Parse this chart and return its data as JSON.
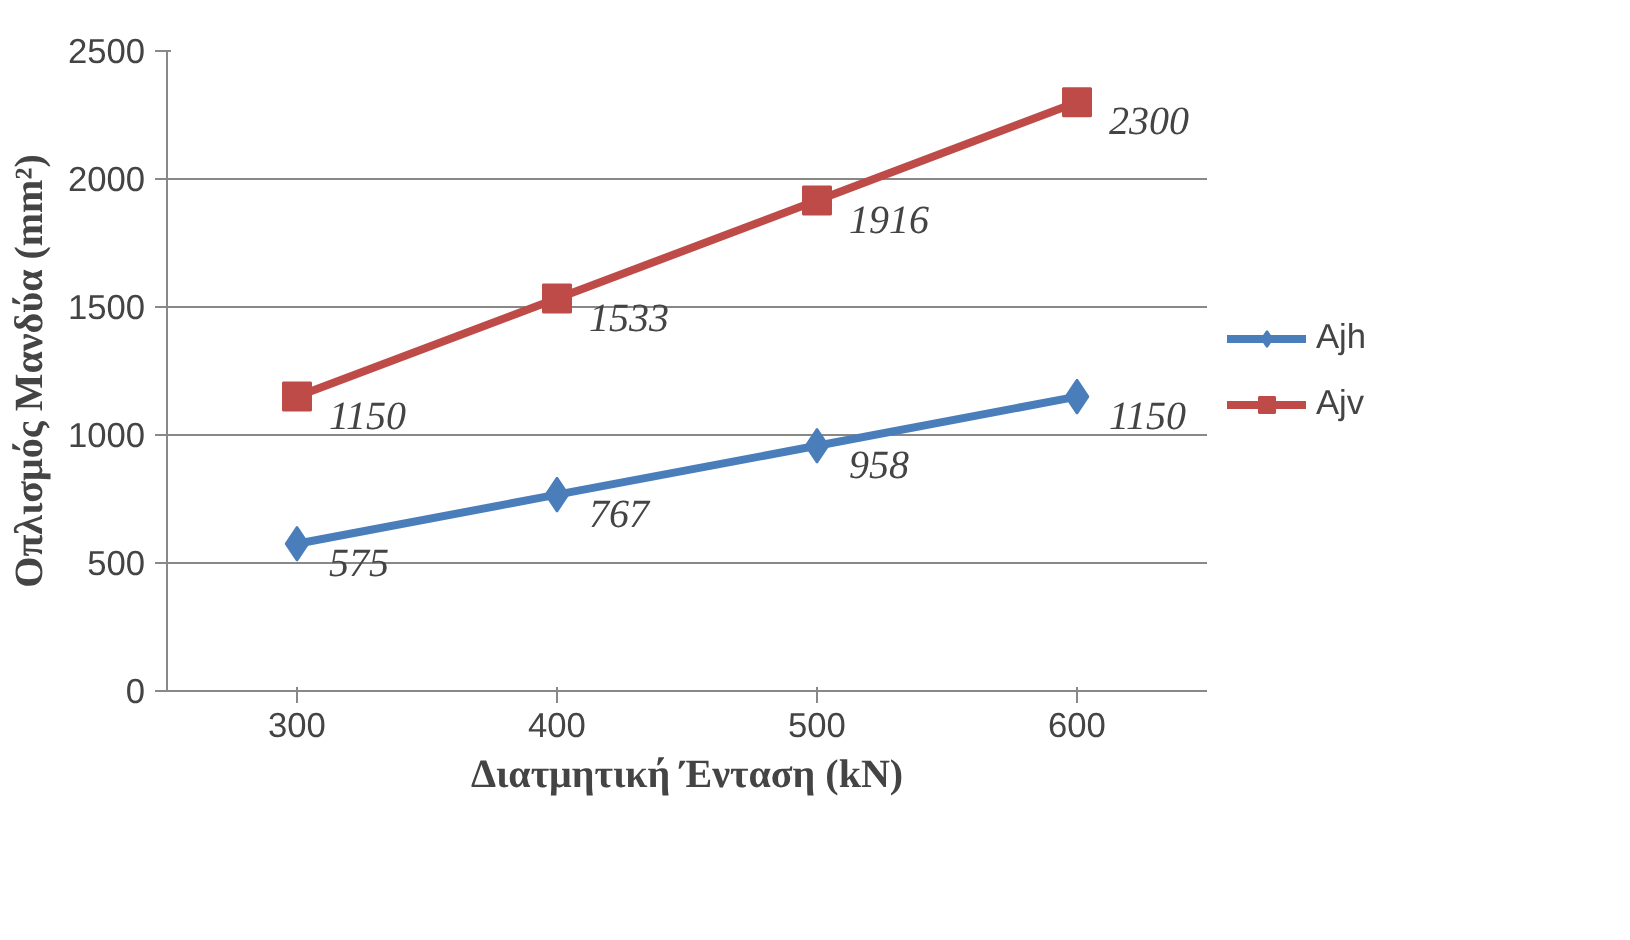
{
  "chart_data": {
    "type": "line",
    "xlabel": "Διατμητική Ένταση (kN)",
    "ylabel": "Οπλισμός Μανδύα (mm²)",
    "categories": [
      "300",
      "400",
      "500",
      "600"
    ],
    "series": [
      {
        "name": "Ajh",
        "color": "#4a7ebb",
        "marker": "diamond",
        "values": [
          575,
          767,
          958,
          1150
        ]
      },
      {
        "name": "Ajv",
        "color": "#be4b48",
        "marker": "square",
        "values": [
          1150,
          1533,
          1916,
          2300
        ]
      }
    ],
    "ylim": [
      0,
      2500
    ],
    "yticks": [
      0,
      500,
      1000,
      1500,
      2000,
      2500
    ],
    "grid": "y",
    "legend": "right",
    "data_labels": true,
    "line_style": "solid"
  }
}
